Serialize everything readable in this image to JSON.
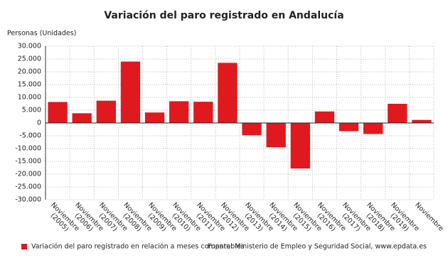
{
  "chart_data": {
    "type": "bar",
    "title": "Variación del paro registrado en Andalucía",
    "y_axis_label": "Personas (Unidades)",
    "source": "Fuente: Ministerio de Empleo y Seguridad Social, www.epdata.es",
    "categories": [
      "Noviembre\n(2005)",
      "Noviembre\n(2006)",
      "Noviembre\n(2007)",
      "Noviembre\n(2008)",
      "Noviembre\n(2009)",
      "Noviembre\n(2010)",
      "Noviembre\n(2011)",
      "Noviembre\n(2012)",
      "Noviembre\n(2013)",
      "Noviembre\n(2014)",
      "Noviembre\n(2015)",
      "Noviembre\n(2016)",
      "Noviembre\n(2017)",
      "Noviembre\n(2018)",
      "Noviembre\n(2019)",
      "Noviembre"
    ],
    "series": [
      {
        "name": "Variación del paro registrado en relación a meses comparables",
        "color": "#e0191e",
        "values": [
          8200,
          3800,
          8700,
          24000,
          4100,
          8500,
          8300,
          23500,
          -4800,
          -9500,
          -17800,
          4500,
          -3200,
          -4300,
          7500,
          1200
        ]
      }
    ],
    "ylim": [
      -30000,
      30000
    ],
    "yticks": [
      {
        "value": -30000,
        "label": "-30.000"
      },
      {
        "value": -25000,
        "label": "-25.000"
      },
      {
        "value": -20000,
        "label": "-20.000"
      },
      {
        "value": -15000,
        "label": "-15.000"
      },
      {
        "value": -10000,
        "label": "-10.000"
      },
      {
        "value": -5000,
        "label": "-5.000"
      },
      0,
      {
        "value": 5000,
        "label": "5.000"
      },
      {
        "value": 10000,
        "label": "10.000"
      },
      {
        "value": 15000,
        "label": "15.000"
      },
      {
        "value": 20000,
        "label": "20.000"
      },
      {
        "value": 25000,
        "label": "25.000"
      },
      {
        "value": 30000,
        "label": "30.000"
      }
    ],
    "grid": true
  }
}
